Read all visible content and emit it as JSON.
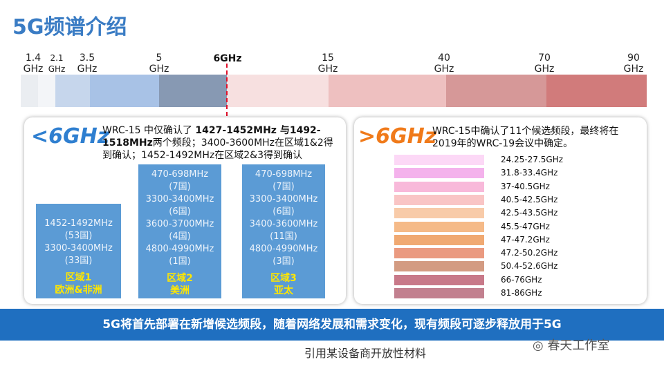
{
  "title": "5G频谱介绍",
  "ruler": {
    "labels": [
      {
        "num": "1.4",
        "unit": "GHz"
      },
      {
        "num": "2.1",
        "unit": "GHz"
      },
      {
        "num": "3.5",
        "unit": "GHz"
      },
      {
        "num": "5",
        "unit": "GHz"
      },
      {
        "num": "15",
        "unit": "GHz"
      },
      {
        "num": "40",
        "unit": "GHz"
      },
      {
        "num": "70",
        "unit": "GHz"
      },
      {
        "num": "90",
        "unit": "GHz"
      }
    ],
    "marker": "6GHz"
  },
  "left": {
    "badge": "<6GHz",
    "text": [
      "WRC-15 中仅确认了 ",
      "1427-1452MHz  与1492-1518MHz",
      "两个频段；3400-3600MHz在区域1&2得到确认；1452-1492MHz在区域2&3得到确认"
    ],
    "regions": [
      {
        "lines": [
          "1452-1492MHz",
          "(53国)",
          "3300-3400MHz",
          "(33国)"
        ],
        "region": "区域1",
        "area": "欧洲&非洲"
      },
      {
        "lines": [
          "470-698MHz",
          "(7国)",
          "3300-3400MHz",
          "(6国)",
          "3600-3700MHz",
          "(4国)",
          "4800-4990MHz",
          "(1国)"
        ],
        "region": "区域2",
        "area": "美洲"
      },
      {
        "lines": [
          "470-698MHz",
          "(7国)",
          "3300-3400MHz",
          "(6国)",
          "3400-3600MHz",
          "(11国)",
          "4800-4990MHz",
          "(3国)"
        ],
        "region": "区域3",
        "area": "亚太"
      }
    ]
  },
  "right": {
    "badge": ">6GHz",
    "text": "WRC-15中确认了11个候选频段，最终将在2019年的WRC-19会议中确定。",
    "bands": [
      "24.25-27.5GHz",
      "31.8-33.4GHz",
      "37-40.5GHz",
      "40.5-42.5GHz",
      "42.5-43.5GHz",
      "45.5-47GHz",
      "47-47.2GHz",
      "47.2-50.2GHz",
      "50.4-52.6GHz",
      "66-76GHz",
      "81-86GHz"
    ]
  },
  "banner": "5G将首先部署在新增候选频段，随着网络发展和需求变化，现有频段可逐步释放用于5G",
  "source": "引用某设备商开放性材料",
  "watermark": "春天工作室"
}
